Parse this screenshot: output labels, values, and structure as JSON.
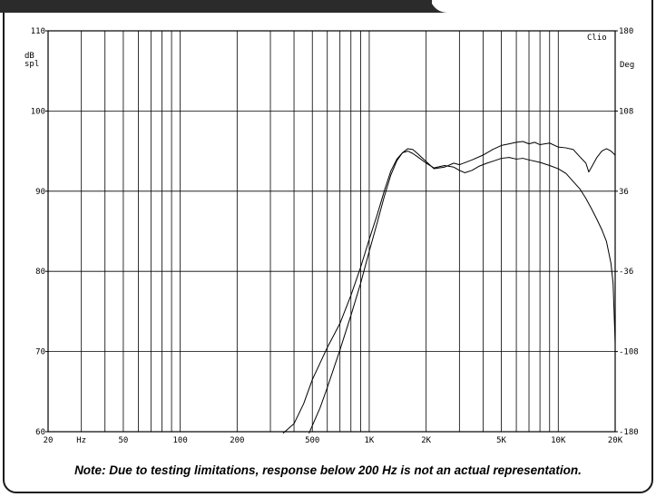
{
  "chart_data": {
    "type": "line",
    "brand": "Clio",
    "ylabel_left": [
      "dB",
      "spl"
    ],
    "ylabel_right": "Deg",
    "x_scale": "log",
    "xlim": [
      20,
      20000
    ],
    "ylim": [
      60,
      110
    ],
    "ylim_right": [
      -180,
      180
    ],
    "grid": true,
    "x_tick_labels": [
      {
        "x": 20,
        "label": "20"
      },
      {
        "x": 30,
        "label": "Hz"
      },
      {
        "x": 50,
        "label": "50"
      },
      {
        "x": 100,
        "label": "100"
      },
      {
        "x": 200,
        "label": "200"
      },
      {
        "x": 500,
        "label": "500"
      },
      {
        "x": 1000,
        "label": "1K"
      },
      {
        "x": 2000,
        "label": "2K"
      },
      {
        "x": 5000,
        "label": "5K"
      },
      {
        "x": 10000,
        "label": "10K"
      },
      {
        "x": 20000,
        "label": "20K"
      }
    ],
    "y_ticks_left": [
      60,
      70,
      80,
      90,
      100,
      110
    ],
    "y_ticks_right": [
      -180,
      -108,
      -36,
      36,
      108,
      180
    ],
    "series": [
      {
        "points": [
          [
            350,
            59.8
          ],
          [
            400,
            61
          ],
          [
            450,
            63.5
          ],
          [
            500,
            66.5
          ],
          [
            600,
            70.5
          ],
          [
            700,
            73.5
          ],
          [
            800,
            77
          ],
          [
            900,
            80.5
          ],
          [
            1000,
            84
          ],
          [
            1100,
            87
          ],
          [
            1200,
            90
          ],
          [
            1300,
            92.5
          ],
          [
            1400,
            94
          ],
          [
            1500,
            94.8
          ],
          [
            1600,
            95
          ],
          [
            1700,
            94.7
          ],
          [
            1800,
            94.3
          ],
          [
            2000,
            93.5
          ],
          [
            2200,
            92.9
          ],
          [
            2500,
            93.2
          ],
          [
            2800,
            93
          ],
          [
            3000,
            92.6
          ],
          [
            3200,
            92.3
          ],
          [
            3500,
            92.6
          ],
          [
            3800,
            93.1
          ],
          [
            4200,
            93.5
          ],
          [
            4600,
            93.8
          ],
          [
            5000,
            94.1
          ],
          [
            5500,
            94.2
          ],
          [
            6000,
            94
          ],
          [
            6500,
            94.1
          ],
          [
            7000,
            93.9
          ],
          [
            8000,
            93.6
          ],
          [
            9000,
            93.2
          ],
          [
            10000,
            92.8
          ],
          [
            11000,
            92.2
          ],
          [
            12000,
            91.2
          ],
          [
            13000,
            90.3
          ],
          [
            14000,
            89.1
          ],
          [
            15000,
            87.8
          ],
          [
            16000,
            86.5
          ],
          [
            17000,
            85.2
          ],
          [
            18000,
            83.7
          ],
          [
            19000,
            81
          ],
          [
            19500,
            78.5
          ],
          [
            20000,
            71
          ]
        ]
      },
      {
        "points": [
          [
            480,
            59.8
          ],
          [
            550,
            63
          ],
          [
            600,
            65.5
          ],
          [
            700,
            70.2
          ],
          [
            800,
            74.5
          ],
          [
            900,
            78.5
          ],
          [
            1000,
            82.5
          ],
          [
            1100,
            86
          ],
          [
            1200,
            89.3
          ],
          [
            1300,
            92
          ],
          [
            1400,
            93.8
          ],
          [
            1500,
            94.8
          ],
          [
            1600,
            95.3
          ],
          [
            1700,
            95.2
          ],
          [
            1800,
            94.7
          ],
          [
            2000,
            93.7
          ],
          [
            2200,
            92.8
          ],
          [
            2500,
            93
          ],
          [
            2800,
            93.5
          ],
          [
            3000,
            93.3
          ],
          [
            3500,
            93.9
          ],
          [
            4000,
            94.5
          ],
          [
            4500,
            95.2
          ],
          [
            5000,
            95.7
          ],
          [
            5500,
            95.9
          ],
          [
            6000,
            96.1
          ],
          [
            6500,
            96.2
          ],
          [
            7000,
            95.9
          ],
          [
            7500,
            96.1
          ],
          [
            8000,
            95.8
          ],
          [
            9000,
            96
          ],
          [
            10000,
            95.5
          ],
          [
            11000,
            95.4
          ],
          [
            12000,
            95.2
          ],
          [
            13000,
            94.3
          ],
          [
            14000,
            93.5
          ],
          [
            14500,
            92.4
          ],
          [
            15000,
            93
          ],
          [
            16000,
            94.2
          ],
          [
            17000,
            95
          ],
          [
            18000,
            95.3
          ],
          [
            19000,
            95
          ],
          [
            20000,
            94.5
          ]
        ]
      }
    ],
    "note": "Note:  Due to testing limitations, response below 200 Hz is not an actual representation."
  }
}
